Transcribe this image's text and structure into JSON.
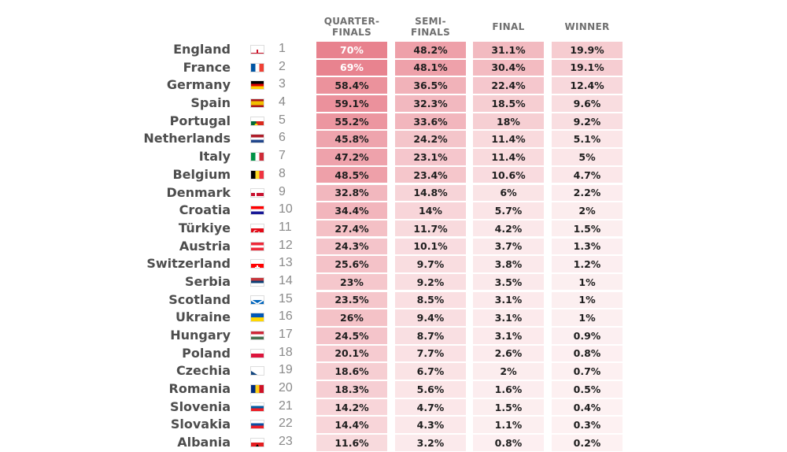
{
  "chart_data": {
    "type": "table",
    "title": "",
    "columns": [
      "QUARTER-FINALS",
      "SEMI-FINALS",
      "FINAL",
      "WINNER"
    ],
    "column_lines": [
      [
        "QUARTER-",
        "FINALS"
      ],
      [
        "SEMI-",
        "FINALS"
      ],
      [
        "FINAL"
      ],
      [
        "WINNER"
      ]
    ],
    "heat_max": 70,
    "rows": [
      {
        "team": "England",
        "rank": 1,
        "flag": "england",
        "values": [
          70,
          48.2,
          31.1,
          19.9
        ],
        "labels": [
          "70%",
          "48.2%",
          "31.1%",
          "19.9%"
        ]
      },
      {
        "team": "France",
        "rank": 2,
        "flag": "france",
        "values": [
          69,
          48.1,
          30.4,
          19.1
        ],
        "labels": [
          "69%",
          "48.1%",
          "30.4%",
          "19.1%"
        ]
      },
      {
        "team": "Germany",
        "rank": 3,
        "flag": "germany",
        "values": [
          58.4,
          36.5,
          22.4,
          12.4
        ],
        "labels": [
          "58.4%",
          "36.5%",
          "22.4%",
          "12.4%"
        ]
      },
      {
        "team": "Spain",
        "rank": 4,
        "flag": "spain",
        "values": [
          59.1,
          32.3,
          18.5,
          9.6
        ],
        "labels": [
          "59.1%",
          "32.3%",
          "18.5%",
          "9.6%"
        ]
      },
      {
        "team": "Portugal",
        "rank": 5,
        "flag": "portugal",
        "values": [
          55.2,
          33.6,
          18,
          9.2
        ],
        "labels": [
          "55.2%",
          "33.6%",
          "18%",
          "9.2%"
        ]
      },
      {
        "team": "Netherlands",
        "rank": 6,
        "flag": "netherlands",
        "values": [
          45.8,
          24.2,
          11.4,
          5.1
        ],
        "labels": [
          "45.8%",
          "24.2%",
          "11.4%",
          "5.1%"
        ]
      },
      {
        "team": "Italy",
        "rank": 7,
        "flag": "italy",
        "values": [
          47.2,
          23.1,
          11.4,
          5
        ],
        "labels": [
          "47.2%",
          "23.1%",
          "11.4%",
          "5%"
        ]
      },
      {
        "team": "Belgium",
        "rank": 8,
        "flag": "belgium",
        "values": [
          48.5,
          23.4,
          10.6,
          4.7
        ],
        "labels": [
          "48.5%",
          "23.4%",
          "10.6%",
          "4.7%"
        ]
      },
      {
        "team": "Denmark",
        "rank": 9,
        "flag": "denmark",
        "values": [
          32.8,
          14.8,
          6,
          2.2
        ],
        "labels": [
          "32.8%",
          "14.8%",
          "6%",
          "2.2%"
        ]
      },
      {
        "team": "Croatia",
        "rank": 10,
        "flag": "croatia",
        "values": [
          34.4,
          14,
          5.7,
          2
        ],
        "labels": [
          "34.4%",
          "14%",
          "5.7%",
          "2%"
        ]
      },
      {
        "team": "Türkiye",
        "rank": 11,
        "flag": "turkiye",
        "values": [
          27.4,
          11.7,
          4.2,
          1.5
        ],
        "labels": [
          "27.4%",
          "11.7%",
          "4.2%",
          "1.5%"
        ]
      },
      {
        "team": "Austria",
        "rank": 12,
        "flag": "austria",
        "values": [
          24.3,
          10.1,
          3.7,
          1.3
        ],
        "labels": [
          "24.3%",
          "10.1%",
          "3.7%",
          "1.3%"
        ]
      },
      {
        "team": "Switzerland",
        "rank": 13,
        "flag": "switzerland",
        "values": [
          25.6,
          9.7,
          3.8,
          1.2
        ],
        "labels": [
          "25.6%",
          "9.7%",
          "3.8%",
          "1.2%"
        ]
      },
      {
        "team": "Serbia",
        "rank": 14,
        "flag": "serbia",
        "values": [
          23,
          9.2,
          3.5,
          1
        ],
        "labels": [
          "23%",
          "9.2%",
          "3.5%",
          "1%"
        ]
      },
      {
        "team": "Scotland",
        "rank": 15,
        "flag": "scotland",
        "values": [
          23.5,
          8.5,
          3.1,
          1
        ],
        "labels": [
          "23.5%",
          "8.5%",
          "3.1%",
          "1%"
        ]
      },
      {
        "team": "Ukraine",
        "rank": 16,
        "flag": "ukraine",
        "values": [
          26,
          9.4,
          3.1,
          1
        ],
        "labels": [
          "26%",
          "9.4%",
          "3.1%",
          "1%"
        ]
      },
      {
        "team": "Hungary",
        "rank": 17,
        "flag": "hungary",
        "values": [
          24.5,
          8.7,
          3.1,
          0.9
        ],
        "labels": [
          "24.5%",
          "8.7%",
          "3.1%",
          "0.9%"
        ]
      },
      {
        "team": "Poland",
        "rank": 18,
        "flag": "poland",
        "values": [
          20.1,
          7.7,
          2.6,
          0.8
        ],
        "labels": [
          "20.1%",
          "7.7%",
          "2.6%",
          "0.8%"
        ]
      },
      {
        "team": "Czechia",
        "rank": 19,
        "flag": "czechia",
        "values": [
          18.6,
          6.7,
          2,
          0.7
        ],
        "labels": [
          "18.6%",
          "6.7%",
          "2%",
          "0.7%"
        ]
      },
      {
        "team": "Romania",
        "rank": 20,
        "flag": "romania",
        "values": [
          18.3,
          5.6,
          1.6,
          0.5
        ],
        "labels": [
          "18.3%",
          "5.6%",
          "1.6%",
          "0.5%"
        ]
      },
      {
        "team": "Slovenia",
        "rank": 21,
        "flag": "slovenia",
        "values": [
          14.2,
          4.7,
          1.5,
          0.4
        ],
        "labels": [
          "14.2%",
          "4.7%",
          "1.5%",
          "0.4%"
        ]
      },
      {
        "team": "Slovakia",
        "rank": 22,
        "flag": "slovakia",
        "values": [
          14.4,
          4.3,
          1.1,
          0.3
        ],
        "labels": [
          "14.4%",
          "4.3%",
          "1.1%",
          "0.3%"
        ]
      },
      {
        "team": "Albania",
        "rank": 23,
        "flag": "albania",
        "values": [
          11.6,
          3.2,
          0.8,
          0.2
        ],
        "labels": [
          "11.6%",
          "3.2%",
          "0.8%",
          "0.2%"
        ]
      }
    ]
  },
  "colors": {
    "heat_high": "#e8828e",
    "heat_low": "#fdf2f3",
    "team_text": "#4d4d4d",
    "rank_text": "#8a8a8a",
    "header_text": "#6f6f6f"
  }
}
